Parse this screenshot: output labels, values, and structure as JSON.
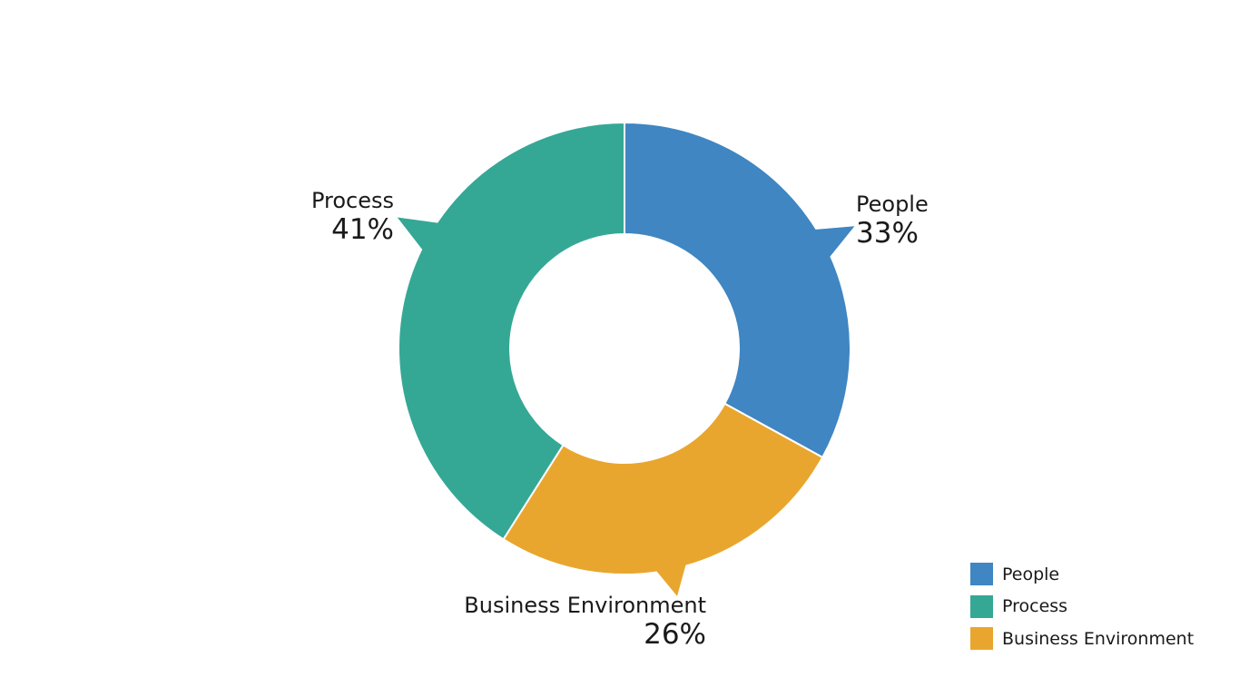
{
  "chart_data": {
    "type": "pie",
    "variant": "donut",
    "slices": [
      {
        "label": "People",
        "value": 33,
        "value_label": "33%",
        "color": "#3f86c2"
      },
      {
        "label": "Business Environment",
        "value": 26,
        "value_label": "26%",
        "color": "#e9a62e"
      },
      {
        "label": "Process",
        "value": 41,
        "value_label": "41%",
        "color": "#34a895"
      }
    ],
    "legend": {
      "placement": "bottom-right",
      "items": [
        {
          "label": "People",
          "color": "#3f86c2"
        },
        {
          "label": "Process",
          "color": "#34a895"
        },
        {
          "label": "Business Environment",
          "color": "#e9a62e"
        }
      ]
    }
  }
}
